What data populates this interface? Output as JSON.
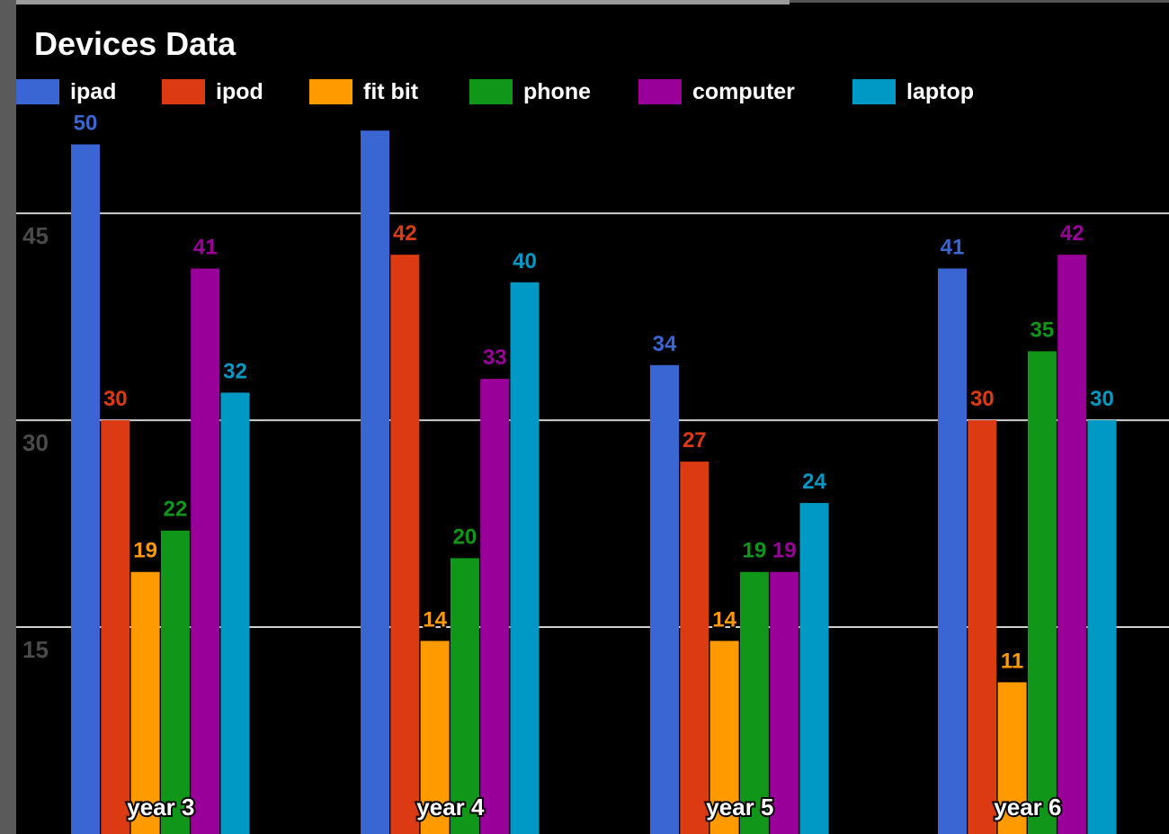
{
  "chart_data": {
    "type": "bar",
    "title": "Devices Data",
    "xlabel": "",
    "ylabel": "",
    "categories": [
      "year 3",
      "year 4",
      "year 5",
      "year 6"
    ],
    "series": [
      {
        "name": "ipad",
        "color": "#3a66d4",
        "values": [
          50,
          51,
          34,
          41
        ]
      },
      {
        "name": "ipod",
        "color": "#dc3a12",
        "values": [
          30,
          42,
          27,
          30
        ]
      },
      {
        "name": "fit bit",
        "color": "#ff9a00",
        "values": [
          19,
          14,
          14,
          11
        ]
      },
      {
        "name": "phone",
        "color": "#109618",
        "values": [
          22,
          20,
          19,
          35
        ]
      },
      {
        "name": "computer",
        "color": "#990099",
        "values": [
          41,
          33,
          19,
          42
        ]
      },
      {
        "name": "laptop",
        "color": "#0099c6",
        "values": [
          32,
          40,
          24,
          30
        ]
      }
    ],
    "data_labels": [
      [
        "50",
        "30",
        "19",
        "22",
        "41",
        "32"
      ],
      [
        "",
        "42",
        "14",
        "20",
        "33",
        "40"
      ],
      [
        "34",
        "27",
        "14",
        "19",
        "19",
        "24"
      ],
      [
        "41",
        "30",
        "11",
        "35",
        "42",
        "30"
      ]
    ],
    "y_ticks": [
      "15",
      "30",
      "45"
    ],
    "y_tick_values": [
      15,
      30,
      45
    ],
    "ylim": [
      0,
      51
    ],
    "grid": true,
    "legend": "top-left"
  }
}
